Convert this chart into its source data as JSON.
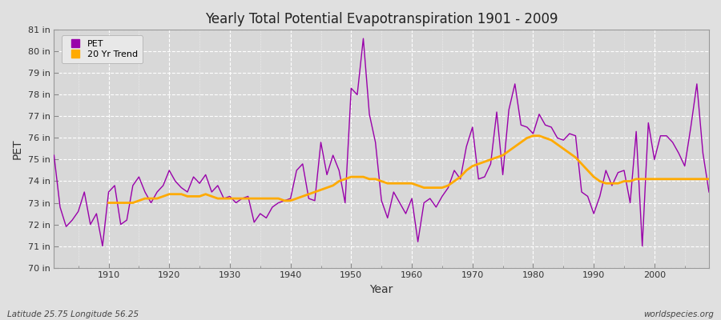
{
  "title": "Yearly Total Potential Evapotranspiration 1901 - 2009",
  "xlabel": "Year",
  "ylabel": "PET",
  "subtitle_left": "Latitude 25.75 Longitude 56.25",
  "subtitle_right": "worldspecies.org",
  "ylim": [
    70,
    81
  ],
  "yticks": [
    70,
    71,
    72,
    73,
    74,
    75,
    76,
    77,
    78,
    79,
    80,
    81
  ],
  "ytick_labels": [
    "70 in",
    "71 in",
    "72 in",
    "73 in",
    "74 in",
    "75 in",
    "76 in",
    "77 in",
    "78 in",
    "79 in",
    "80 in",
    "81 in"
  ],
  "xlim": [
    1901,
    2009
  ],
  "xticks": [
    1910,
    1920,
    1930,
    1940,
    1950,
    1960,
    1970,
    1980,
    1990,
    2000
  ],
  "pet_color": "#9900aa",
  "trend_color": "#ffaa00",
  "background_color": "#e0e0e0",
  "plot_bg_color": "#d8d8d8",
  "grid_color": "#ffffff",
  "legend_entries": [
    "PET",
    "20 Yr Trend"
  ],
  "years": [
    1901,
    1902,
    1903,
    1904,
    1905,
    1906,
    1907,
    1908,
    1909,
    1910,
    1911,
    1912,
    1913,
    1914,
    1915,
    1916,
    1917,
    1918,
    1919,
    1920,
    1921,
    1922,
    1923,
    1924,
    1925,
    1926,
    1927,
    1928,
    1929,
    1930,
    1931,
    1932,
    1933,
    1934,
    1935,
    1936,
    1937,
    1938,
    1939,
    1940,
    1941,
    1942,
    1943,
    1944,
    1945,
    1946,
    1947,
    1948,
    1949,
    1950,
    1951,
    1952,
    1953,
    1954,
    1955,
    1956,
    1957,
    1958,
    1959,
    1960,
    1961,
    1962,
    1963,
    1964,
    1965,
    1966,
    1967,
    1968,
    1969,
    1970,
    1971,
    1972,
    1973,
    1974,
    1975,
    1976,
    1977,
    1978,
    1979,
    1980,
    1981,
    1982,
    1983,
    1984,
    1985,
    1986,
    1987,
    1988,
    1989,
    1990,
    1991,
    1992,
    1993,
    1994,
    1995,
    1996,
    1997,
    1998,
    1999,
    2000,
    2001,
    2002,
    2003,
    2004,
    2005,
    2006,
    2007,
    2008,
    2009
  ],
  "pet_values": [
    75.2,
    72.8,
    71.9,
    72.2,
    72.6,
    73.5,
    72.0,
    72.5,
    71.0,
    73.5,
    73.8,
    72.0,
    72.2,
    73.8,
    74.2,
    73.5,
    73.0,
    73.5,
    73.8,
    74.5,
    74.0,
    73.7,
    73.5,
    74.2,
    73.9,
    74.3,
    73.5,
    73.8,
    73.2,
    73.3,
    73.0,
    73.2,
    73.3,
    72.1,
    72.5,
    72.3,
    72.8,
    73.0,
    73.1,
    73.2,
    74.5,
    74.8,
    73.2,
    73.1,
    75.8,
    74.3,
    75.2,
    74.5,
    73.0,
    78.3,
    78.0,
    80.6,
    77.1,
    75.8,
    73.1,
    72.3,
    73.5,
    73.0,
    72.5,
    73.2,
    71.2,
    73.0,
    73.2,
    72.8,
    73.3,
    73.7,
    74.5,
    74.1,
    75.6,
    76.5,
    74.1,
    74.2,
    74.8,
    77.2,
    74.3,
    77.3,
    78.5,
    76.6,
    76.5,
    76.2,
    77.1,
    76.6,
    76.5,
    76.0,
    75.9,
    76.2,
    76.1,
    73.5,
    73.3,
    72.5,
    73.3,
    74.5,
    73.8,
    74.4,
    74.5,
    73.0,
    76.3,
    71.0,
    76.7,
    75.0,
    76.1,
    76.1,
    75.8,
    75.3,
    74.7,
    76.5,
    78.5,
    75.3,
    73.5
  ],
  "trend_values": [
    null,
    null,
    null,
    null,
    null,
    null,
    null,
    null,
    null,
    73.0,
    73.0,
    73.0,
    73.0,
    73.0,
    73.1,
    73.2,
    73.2,
    73.2,
    73.3,
    73.4,
    73.4,
    73.4,
    73.3,
    73.3,
    73.3,
    73.4,
    73.3,
    73.2,
    73.2,
    73.2,
    73.2,
    73.2,
    73.2,
    73.2,
    73.2,
    73.2,
    73.2,
    73.2,
    73.1,
    73.1,
    73.2,
    73.3,
    73.4,
    73.5,
    73.6,
    73.7,
    73.8,
    74.0,
    74.1,
    74.2,
    74.2,
    74.2,
    74.1,
    74.1,
    74.0,
    73.9,
    73.9,
    73.9,
    73.9,
    73.9,
    73.8,
    73.7,
    73.7,
    73.7,
    73.7,
    73.8,
    74.0,
    74.2,
    74.5,
    74.7,
    74.8,
    74.9,
    75.0,
    75.1,
    75.2,
    75.4,
    75.6,
    75.8,
    76.0,
    76.1,
    76.1,
    76.0,
    75.9,
    75.7,
    75.5,
    75.3,
    75.1,
    74.8,
    74.5,
    74.2,
    74.0,
    73.9,
    73.9,
    73.9,
    74.0,
    74.0,
    74.1,
    74.1,
    74.1,
    74.1,
    74.1,
    74.1,
    74.1,
    74.1,
    74.1,
    74.1,
    74.1,
    74.1,
    74.1
  ]
}
